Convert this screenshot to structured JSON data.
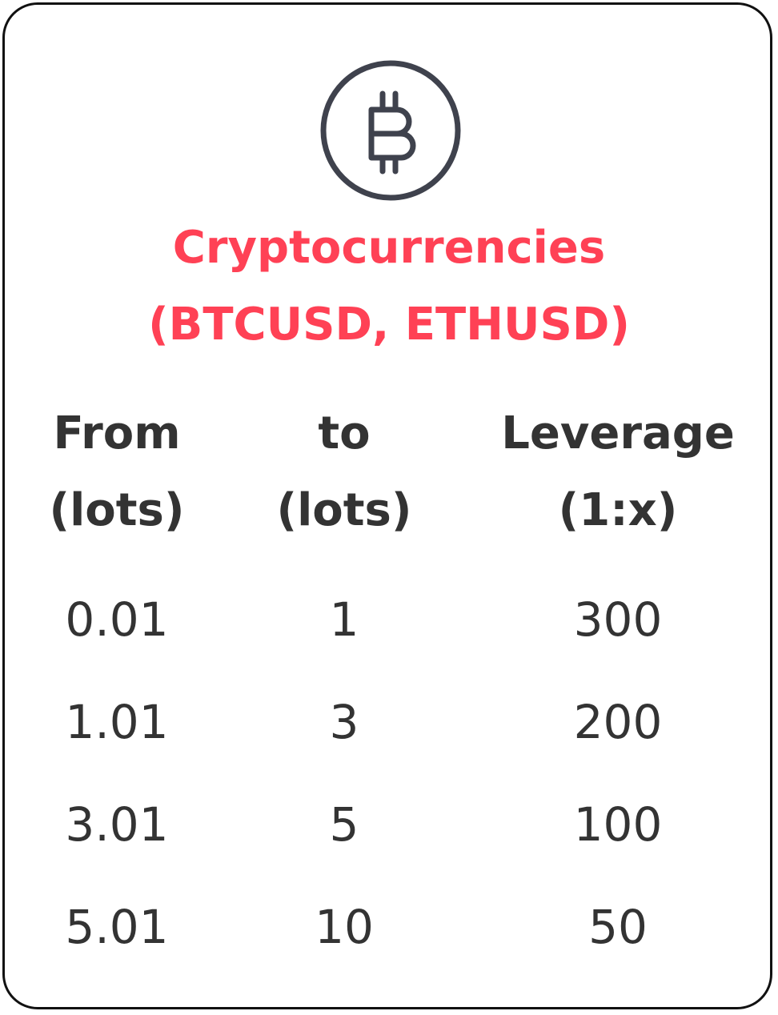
{
  "icon": "bitcoin-circle-icon",
  "title": {
    "line1": "Cryptocurrencies",
    "line2": "(BTCUSD, ETHUSD)"
  },
  "table": {
    "headers": [
      {
        "line1": "From",
        "line2": "(lots)"
      },
      {
        "line1": "to",
        "line2": "(lots)"
      },
      {
        "line1": "Leverage",
        "line2": "(1:x)"
      }
    ],
    "rows": [
      {
        "from": "0.01",
        "to": "1",
        "leverage": "300"
      },
      {
        "from": "1.01",
        "to": "3",
        "leverage": "200"
      },
      {
        "from": "3.01",
        "to": "5",
        "leverage": "100"
      },
      {
        "from": "5.01",
        "to": "10",
        "leverage": "50"
      }
    ]
  },
  "colors": {
    "accent": "#ff4155",
    "text": "#333333",
    "icon": "#3f424d",
    "border": "#111111"
  }
}
